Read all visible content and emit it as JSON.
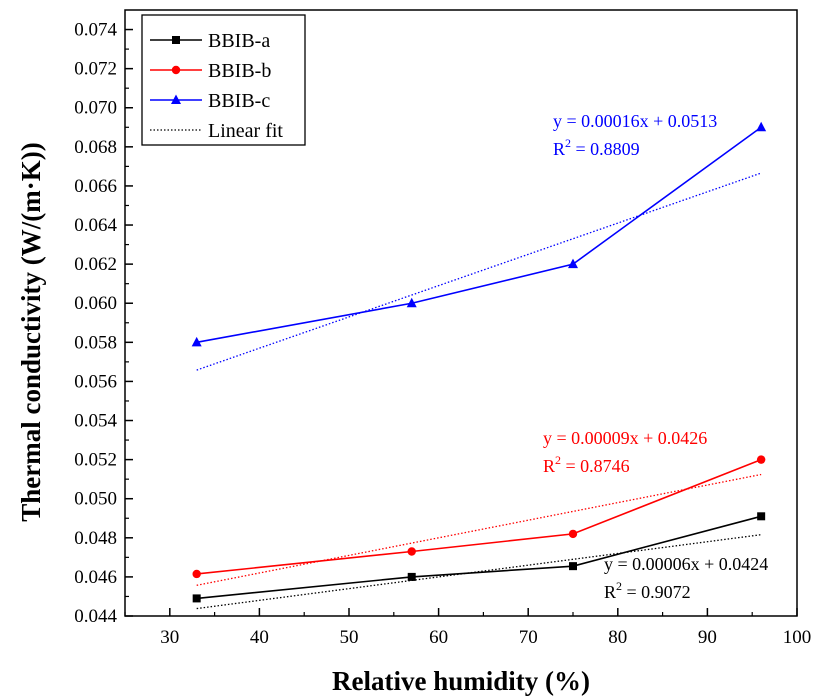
{
  "chart_data": {
    "type": "line",
    "xlabel": "Relative humidity (%)",
    "ylabel": "Thermal conductivity (W/(m·K))",
    "xlim": [
      25,
      100
    ],
    "ylim": [
      0.044,
      0.075
    ],
    "x_ticks": [
      "30",
      "40",
      "50",
      "60",
      "70",
      "80",
      "90",
      "100"
    ],
    "y_ticks": [
      "0.044",
      "0.046",
      "0.048",
      "0.050",
      "0.052",
      "0.054",
      "0.056",
      "0.058",
      "0.060",
      "0.062",
      "0.064",
      "0.066",
      "0.068",
      "0.070",
      "0.072",
      "0.074"
    ],
    "legend_position": "top-left",
    "grid": false,
    "series": [
      {
        "name": "BBIB-a",
        "color": "#000000",
        "marker": "square",
        "x": [
          33,
          57,
          75,
          96
        ],
        "y": [
          0.0449,
          0.046,
          0.04655,
          0.0491
        ],
        "fit": {
          "slope": 6e-05,
          "intercept": 0.0424,
          "equation": "y = 0.00006x + 0.0424",
          "r2_label": "R",
          "r2_sup": "2",
          "r2_value": " = 0.9072"
        }
      },
      {
        "name": "BBIB-b",
        "color": "#ff0000",
        "marker": "circle",
        "x": [
          33,
          57,
          75,
          96
        ],
        "y": [
          0.04615,
          0.0473,
          0.0482,
          0.052
        ],
        "fit": {
          "slope": 9e-05,
          "intercept": 0.0426,
          "equation": "y = 0.00009x + 0.0426",
          "r2_label": "R",
          "r2_sup": "2",
          "r2_value": " = 0.8746"
        }
      },
      {
        "name": "BBIB-c",
        "color": "#0000ff",
        "marker": "triangle",
        "x": [
          33,
          57,
          75,
          96
        ],
        "y": [
          0.058,
          0.06,
          0.062,
          0.069
        ],
        "fit": {
          "slope": 0.00016,
          "intercept": 0.0513,
          "equation": "y = 0.00016x + 0.0513",
          "r2_label": "R",
          "r2_sup": "2",
          "r2_value": " = 0.8809"
        }
      }
    ],
    "legend": [
      {
        "label": "BBIB-a",
        "color": "#000000",
        "marker": "square"
      },
      {
        "label": "BBIB-b",
        "color": "#ff0000",
        "marker": "circle"
      },
      {
        "label": "BBIB-c",
        "color": "#0000ff",
        "marker": "triangle"
      },
      {
        "label": "Linear fit",
        "color": "#000000",
        "marker": "dotted-line"
      }
    ]
  }
}
